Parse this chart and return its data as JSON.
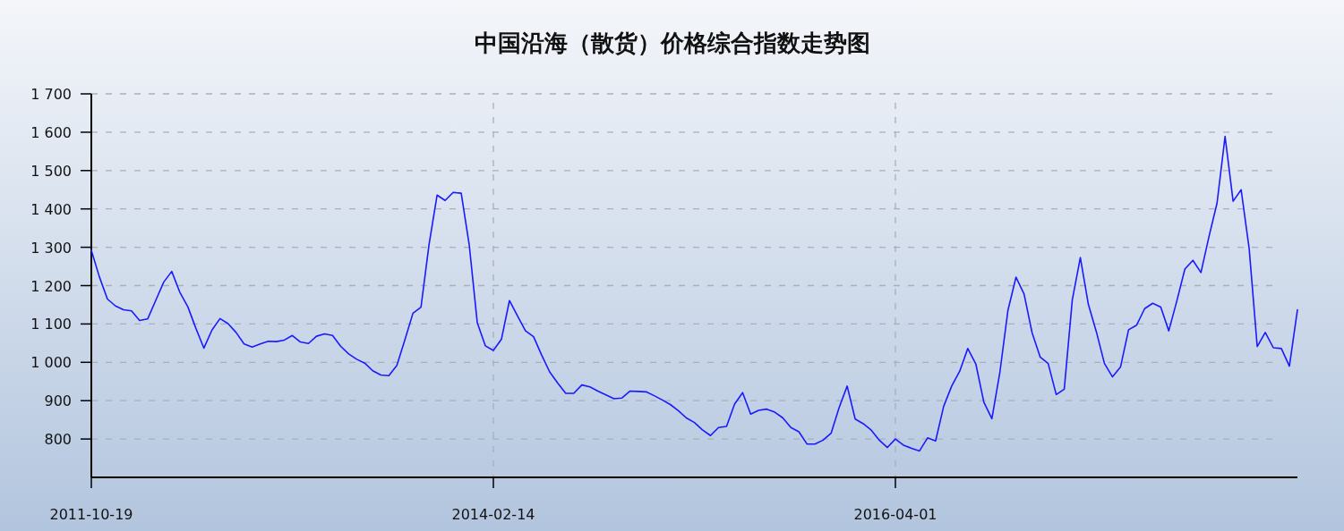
{
  "chart_data": {
    "type": "line",
    "title": "中国沿海（散货）价格综合指数走势图",
    "categories": [
      "2011-10-19",
      null,
      null,
      null,
      null,
      null,
      null,
      null,
      null,
      null,
      null,
      null,
      null,
      null,
      null,
      null,
      null,
      null,
      null,
      null,
      null,
      null,
      null,
      null,
      null,
      null,
      null,
      null,
      null,
      null,
      null,
      null,
      null,
      null,
      null,
      null,
      null,
      null,
      null,
      null,
      null,
      null,
      null,
      null,
      null,
      null,
      null,
      null,
      null,
      null,
      "2014-02-14",
      null,
      null,
      null,
      null,
      null,
      null,
      null,
      null,
      null,
      null,
      null,
      null,
      null,
      null,
      null,
      null,
      null,
      null,
      null,
      null,
      null,
      null,
      null,
      null,
      null,
      null,
      null,
      null,
      null,
      null,
      null,
      null,
      null,
      null,
      null,
      null,
      null,
      null,
      null,
      null,
      null,
      null,
      null,
      null,
      null,
      null,
      null,
      null,
      null,
      "2016-04-01",
      null,
      null,
      null,
      null,
      null,
      null,
      null,
      null,
      null,
      null,
      null,
      null,
      null,
      null,
      null,
      null,
      null,
      null,
      null,
      null,
      null,
      null,
      null,
      null,
      null,
      null,
      null,
      null,
      null,
      null,
      null,
      null,
      null,
      null,
      null,
      null,
      null,
      null,
      null,
      null,
      null,
      null,
      null,
      null,
      null,
      null,
      null,
      null,
      null,
      null
    ],
    "series": [
      {
        "color": "#1a1aff",
        "values": [
          1292,
          1223,
          1165,
          1147,
          1137,
          1134,
          1109,
          1113,
          1161,
          1209,
          1237,
          1183,
          1145,
          1089,
          1037,
          1084,
          1114,
          1101,
          1078,
          1048,
          1040,
          1048,
          1055,
          1054,
          1058,
          1070,
          1053,
          1049,
          1068,
          1074,
          1070,
          1042,
          1022,
          1008,
          998,
          978,
          967,
          965,
          992,
          1059,
          1128,
          1144,
          1307,
          1436,
          1422,
          1443,
          1441,
          1306,
          1103,
          1043,
          1031,
          1060,
          1161,
          1121,
          1082,
          1067,
          1019,
          975,
          946,
          919,
          919,
          941,
          936,
          925,
          915,
          905,
          907,
          925,
          924,
          923,
          913,
          902,
          890,
          874,
          855,
          843,
          824,
          809,
          830,
          833,
          891,
          921,
          865,
          875,
          878,
          870,
          855,
          830,
          819,
          787,
          787,
          797,
          815,
          882,
          938,
          852,
          840,
          823,
          797,
          778,
          800,
          784,
          776,
          769,
          803,
          795,
          885,
          938,
          977,
          1036,
          996,
          896,
          853,
          975,
          1136,
          1222,
          1178,
          1077,
          1014,
          997,
          916,
          930,
          1163,
          1273,
          1151,
          1079,
          997,
          962,
          988,
          1085,
          1097,
          1140,
          1154,
          1144,
          1082,
          1160,
          1243,
          1266,
          1234,
          1328,
          1415,
          1589,
          1420,
          1450,
          1296,
          1041,
          1078,
          1038,
          1036,
          990,
          1137
        ]
      }
    ],
    "ylim": [
      700,
      1700
    ],
    "yticks": [
      800,
      900,
      {
        "value": 1000,
        "label": "1 000"
      },
      {
        "value": 1100,
        "label": "1 100"
      },
      {
        "value": 1200,
        "label": "1 200"
      },
      {
        "value": 1300,
        "label": "1 300"
      },
      {
        "value": 1400,
        "label": "1 400"
      },
      {
        "value": 1500,
        "label": "1 500"
      },
      {
        "value": 1600,
        "label": "1 600"
      },
      {
        "value": 1700,
        "label": "1 700"
      }
    ],
    "grid": true,
    "line_style": "solid",
    "marker": "none"
  }
}
